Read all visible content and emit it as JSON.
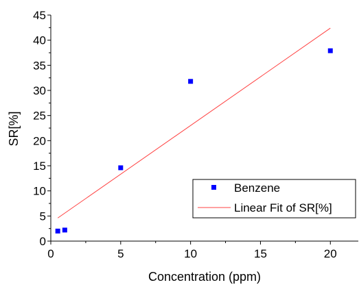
{
  "chart_data": {
    "type": "scatter",
    "xlabel": "Concentration (ppm)",
    "ylabel": "SR[%]",
    "xlim": [
      0,
      22
    ],
    "ylim": [
      0,
      45
    ],
    "x_ticks": [
      0,
      5,
      10,
      15,
      20
    ],
    "y_ticks": [
      0,
      5,
      10,
      15,
      20,
      25,
      30,
      35,
      40,
      45
    ],
    "grid": false,
    "legend_position": "lower-right",
    "series": [
      {
        "name": "Benzene",
        "kind": "scatter",
        "marker": "square",
        "color": "#0000ff",
        "x": [
          0.5,
          1,
          5,
          10,
          20
        ],
        "y": [
          2.0,
          2.2,
          14.6,
          31.8,
          37.9
        ]
      },
      {
        "name": "Linear Fit of SR[%]",
        "kind": "line",
        "color": "#ff4040",
        "x": [
          0.5,
          20
        ],
        "y": [
          4.6,
          42.4
        ]
      }
    ]
  }
}
